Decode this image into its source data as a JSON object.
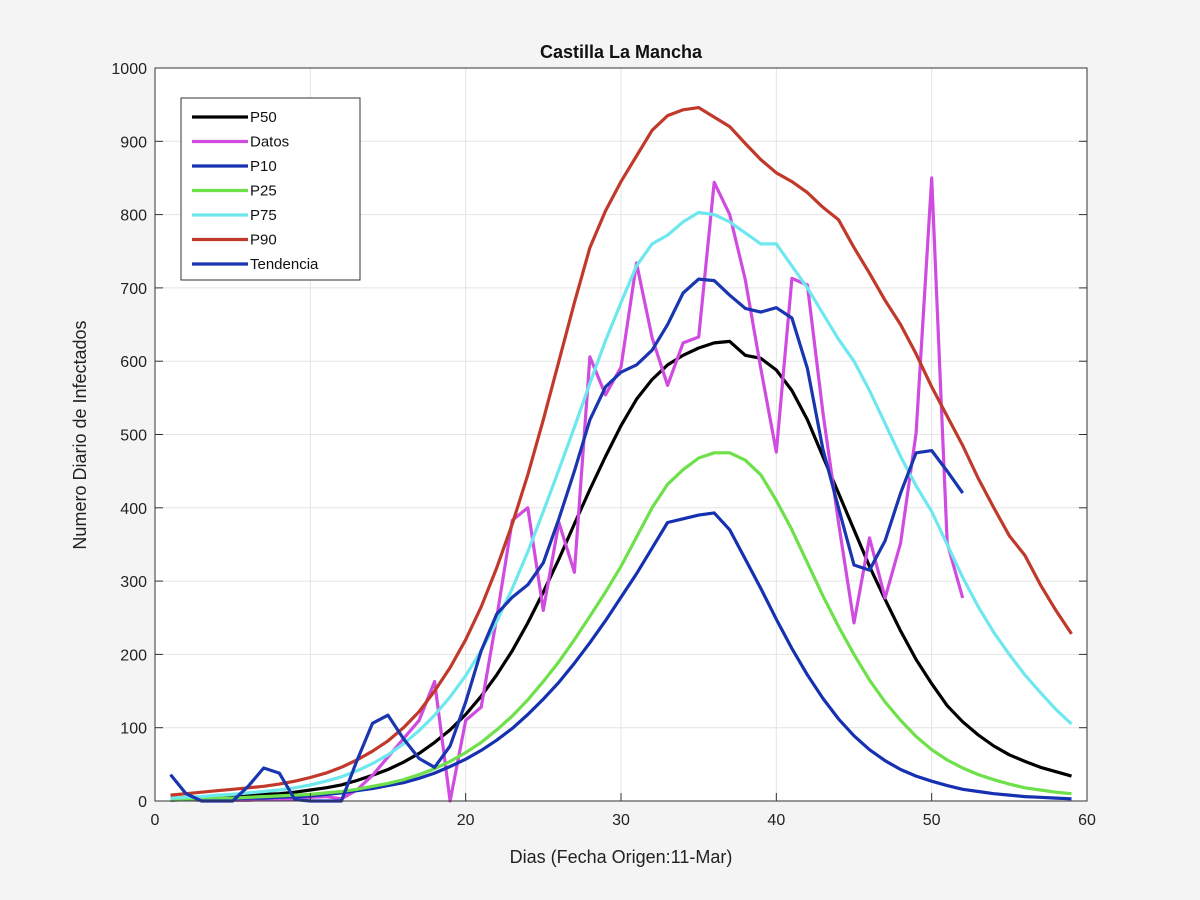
{
  "chart_data": {
    "type": "line",
    "title": "Castilla La Mancha",
    "xlabel": "Dias (Fecha Origen:11-Mar)",
    "ylabel": "Numero Diario de Infectados",
    "xlim": [
      0,
      60
    ],
    "ylim": [
      0,
      1000
    ],
    "xticks": [
      0,
      10,
      20,
      30,
      40,
      50,
      60
    ],
    "yticks": [
      0,
      100,
      200,
      300,
      400,
      500,
      600,
      700,
      800,
      900,
      1000
    ],
    "grid": true,
    "legend_position": "top-left",
    "series": [
      {
        "name": "P50",
        "color": "#000000",
        "x_start": 1,
        "values": [
          3,
          4,
          5,
          6,
          7,
          8,
          9,
          10,
          12,
          15,
          18,
          22,
          28,
          35,
          43,
          53,
          65,
          80,
          97,
          118,
          143,
          172,
          205,
          243,
          285,
          330,
          378,
          425,
          470,
          512,
          548,
          575,
          595,
          608,
          618,
          625,
          627,
          608,
          604,
          588,
          560,
          520,
          470,
          420,
          370,
          320,
          275,
          232,
          193,
          160,
          130,
          108,
          90,
          75,
          63,
          54,
          46,
          40,
          34
        ]
      },
      {
        "name": " Datos",
        "color": "#d04ce0",
        "x_start": 1,
        "values": [
          2,
          2,
          1,
          1,
          1,
          1,
          2,
          2,
          3,
          5,
          6,
          3,
          15,
          35,
          60,
          85,
          110,
          163,
          0,
          110,
          128,
          250,
          383,
          400,
          260,
          380,
          312,
          606,
          554,
          592,
          734,
          632,
          567,
          625,
          633,
          844,
          800,
          711,
          590,
          476,
          713,
          704,
          530,
          380,
          243,
          359,
          277,
          352,
          502,
          850,
          352,
          277
        ]
      },
      {
        "name": "P10",
        "color": "#1530b0",
        "x_start": 1,
        "values": [
          1,
          2,
          2,
          3,
          3,
          4,
          4,
          5,
          6,
          7,
          9,
          11,
          14,
          17,
          21,
          25,
          31,
          38,
          47,
          57,
          69,
          83,
          99,
          118,
          139,
          162,
          188,
          216,
          246,
          278,
          310,
          345,
          380,
          385,
          390,
          393,
          370,
          330,
          290,
          248,
          208,
          172,
          140,
          112,
          89,
          70,
          55,
          43,
          34,
          27,
          21,
          16,
          13,
          10,
          8,
          6,
          5,
          4,
          3
        ]
      },
      {
        "name": "P25",
        "color": "#6ee04a",
        "x_start": 1,
        "values": [
          2,
          3,
          3,
          4,
          4,
          5,
          6,
          7,
          8,
          9,
          11,
          13,
          16,
          20,
          24,
          29,
          36,
          44,
          54,
          66,
          80,
          97,
          116,
          138,
          163,
          190,
          220,
          252,
          285,
          320,
          360,
          400,
          432,
          452,
          468,
          475,
          475,
          465,
          445,
          410,
          370,
          325,
          280,
          238,
          200,
          165,
          135,
          110,
          88,
          70,
          56,
          45,
          36,
          29,
          23,
          18,
          15,
          12,
          10
        ]
      },
      {
        "name": "P75",
        "color": "#6ee8ee",
        "x_start": 1,
        "values": [
          4,
          5,
          6,
          8,
          9,
          11,
          13,
          15,
          18,
          22,
          27,
          33,
          41,
          51,
          63,
          78,
          96,
          117,
          142,
          171,
          205,
          245,
          290,
          340,
          395,
          452,
          510,
          570,
          628,
          680,
          730,
          760,
          772,
          790,
          803,
          800,
          790,
          775,
          760,
          760,
          730,
          700,
          665,
          630,
          600,
          560,
          515,
          470,
          430,
          395,
          350,
          305,
          265,
          230,
          200,
          172,
          148,
          125,
          105
        ]
      },
      {
        "name": "P90",
        "color": "#c0392b",
        "x_start": 1,
        "values": [
          8,
          10,
          12,
          14,
          16,
          18,
          20,
          23,
          27,
          32,
          38,
          46,
          56,
          68,
          82,
          100,
          122,
          150,
          182,
          220,
          265,
          318,
          378,
          445,
          520,
          600,
          680,
          755,
          805,
          845,
          880,
          915,
          935,
          943,
          946,
          933,
          920,
          897,
          875,
          857,
          845,
          830,
          810,
          793,
          755,
          720,
          683,
          650,
          610,
          565,
          525,
          485,
          440,
          400,
          362,
          335,
          295,
          260,
          228
        ]
      },
      {
        "name": "Tendencia",
        "color": "#1a35b0",
        "x_start": 1,
        "values": [
          36,
          10,
          0,
          0,
          0,
          20,
          45,
          38,
          2,
          0,
          0,
          0,
          55,
          106,
          117,
          85,
          58,
          46,
          75,
          135,
          205,
          255,
          278,
          295,
          325,
          385,
          450,
          520,
          565,
          585,
          595,
          615,
          650,
          693,
          712,
          710,
          690,
          672,
          667,
          673,
          659,
          590,
          480,
          400,
          322,
          315,
          355,
          420,
          475,
          478,
          450,
          420
        ]
      }
    ]
  }
}
